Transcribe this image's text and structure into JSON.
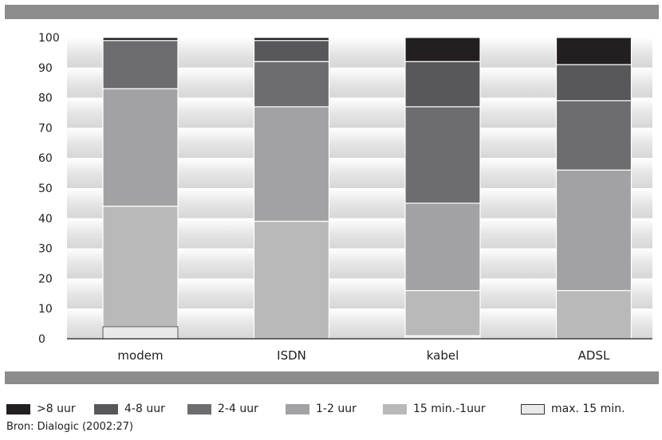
{
  "chart_data": {
    "type": "bar",
    "stacked": true,
    "categories": [
      "modem",
      "ISDN",
      "kabel",
      "ADSL"
    ],
    "y_ticks": [
      "0",
      "10",
      "20",
      "30",
      "40",
      "50",
      "60",
      "70",
      "80",
      "90",
      "100"
    ],
    "ylim": [
      0,
      100
    ],
    "legend_placement": "bottom",
    "series": [
      {
        "name": "max. 15 min.",
        "color": "#e9e9e9",
        "values": [
          4,
          0,
          1,
          0
        ]
      },
      {
        "name": "15 min.-1uur",
        "color": "#b9b9b9",
        "values": [
          40,
          39,
          15,
          16
        ]
      },
      {
        "name": "1-2 uur",
        "color": "#a2a2a4",
        "values": [
          39,
          38,
          29,
          40
        ]
      },
      {
        "name": "2-4 uur",
        "color": "#6d6d70",
        "values": [
          16,
          15,
          32,
          23
        ]
      },
      {
        "name": "4-8 uur",
        "color": "#58585a",
        "values": [
          0,
          7,
          15,
          12
        ]
      },
      {
        "name": ">8 uur",
        "color": "#231f20",
        "values": [
          1,
          1,
          8,
          9
        ]
      }
    ],
    "legend_order": [
      ">8 uur",
      "4-8 uur",
      "2-4 uur",
      "1-2 uur",
      "15 min.-1uur",
      "max. 15 min."
    ]
  },
  "source_text": "Bron: Dialogic (2002:27)"
}
